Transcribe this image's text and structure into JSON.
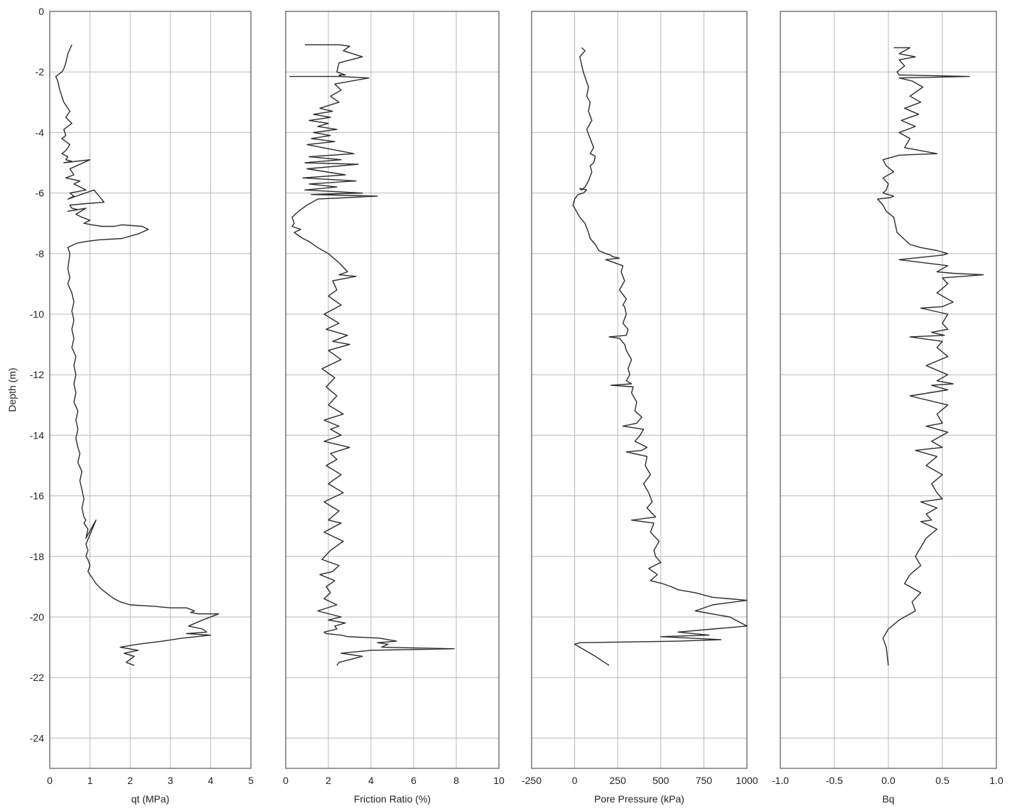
{
  "chart_data": [
    {
      "type": "line",
      "xlabel": "qt (MPa)",
      "ylabel": "Depth (m)",
      "xlim": [
        0,
        5
      ],
      "ylim": [
        -25,
        0
      ],
      "xticks": [
        0,
        1,
        2,
        3,
        4,
        5
      ],
      "yticks": [
        0,
        -2,
        -4,
        -6,
        -8,
        -10,
        -12,
        -14,
        -16,
        -18,
        -20,
        -22,
        -24
      ],
      "grid": true,
      "series": [
        {
          "x": [
            0.55,
            0.45,
            0.4,
            0.35,
            0.3,
            0.2,
            0.15,
            0.2,
            0.25,
            0.35,
            0.5,
            0.4,
            0.55,
            0.35,
            0.4,
            0.3,
            0.5,
            0.4,
            0.3,
            0.45,
            0.4,
            0.55,
            0.35,
            1.0,
            0.5,
            0.6,
            0.4,
            0.75,
            0.6,
            0.9,
            0.5,
            0.6,
            0.45,
            1.1,
            1.35,
            0.9,
            0.5,
            0.55,
            0.7,
            0.45,
            0.9,
            0.65,
            0.8,
            1.0,
            0.85,
            1.05,
            1.3,
            1.6,
            1.8,
            2.3,
            2.45,
            2.2,
            1.8,
            1.2,
            0.9,
            0.7,
            0.6,
            0.45,
            0.5,
            0.45,
            0.5,
            0.45,
            0.55,
            0.6,
            0.55,
            0.6,
            0.55,
            0.6,
            0.55,
            0.65,
            0.6,
            0.65,
            0.6,
            0.65,
            0.6,
            0.7,
            0.65,
            0.7,
            0.65,
            0.7,
            0.75,
            0.7,
            0.8,
            0.75,
            0.8,
            0.85,
            0.8,
            0.85,
            0.9,
            0.85,
            0.95,
            0.9,
            1.15,
            0.9,
            0.95,
            0.9,
            0.95,
            1.0,
            0.95,
            1.05,
            1.15,
            1.3,
            1.5,
            1.6,
            1.75,
            2.0,
            2.6,
            3.0,
            3.4,
            3.5,
            3.6,
            3.5,
            3.7,
            4.2,
            3.8,
            3.45,
            3.8,
            3.9,
            3.4,
            4.0,
            3.3,
            2.8,
            2.2,
            1.75,
            2.2,
            1.85,
            2.1,
            1.9,
            2.1
          ],
          "y": [
            -1.1,
            -1.4,
            -1.7,
            -1.9,
            -2.0,
            -2.1,
            -2.15,
            -2.3,
            -2.6,
            -3.0,
            -3.3,
            -3.5,
            -3.7,
            -3.9,
            -4.1,
            -4.2,
            -4.4,
            -4.6,
            -4.7,
            -4.8,
            -4.9,
            -4.95,
            -5.0,
            -4.9,
            -5.2,
            -5.4,
            -5.5,
            -5.6,
            -5.7,
            -5.9,
            -6.0,
            -6.1,
            -6.2,
            -5.9,
            -6.3,
            -6.35,
            -6.4,
            -6.5,
            -6.55,
            -6.6,
            -6.5,
            -6.7,
            -6.8,
            -6.9,
            -7.0,
            -7.05,
            -7.1,
            -7.1,
            -7.05,
            -7.1,
            -7.2,
            -7.35,
            -7.5,
            -7.55,
            -7.6,
            -7.65,
            -7.7,
            -7.8,
            -8.0,
            -8.5,
            -8.8,
            -9.0,
            -9.3,
            -9.6,
            -9.9,
            -10.2,
            -10.5,
            -10.8,
            -11.1,
            -11.4,
            -11.7,
            -12.0,
            -12.3,
            -12.6,
            -12.9,
            -13.2,
            -13.5,
            -13.8,
            -14.1,
            -14.4,
            -14.6,
            -14.9,
            -15.2,
            -15.5,
            -15.8,
            -16.1,
            -16.4,
            -16.7,
            -16.8,
            -16.9,
            -17.1,
            -17.4,
            -16.8,
            -17.6,
            -17.8,
            -18.0,
            -18.1,
            -18.3,
            -18.5,
            -18.7,
            -18.9,
            -19.1,
            -19.3,
            -19.4,
            -19.5,
            -19.6,
            -19.65,
            -19.7,
            -19.7,
            -19.75,
            -19.8,
            -19.85,
            -19.9,
            -19.9,
            -20.1,
            -20.3,
            -20.4,
            -20.5,
            -20.55,
            -20.6,
            -20.7,
            -20.8,
            -20.9,
            -21.0,
            -21.1,
            -21.2,
            -21.3,
            -21.5,
            -21.6
          ]
        }
      ]
    },
    {
      "type": "line",
      "xlabel": "Friction Ratio (%)",
      "xlim": [
        0,
        10
      ],
      "ylim": [
        -25,
        0
      ],
      "xticks": [
        0,
        2,
        4,
        6,
        8,
        10
      ],
      "grid": true,
      "series": [
        {
          "x": [
            0.9,
            2.5,
            3.0,
            2.7,
            3.6,
            2.5,
            2.4,
            2.8,
            2.5,
            2.6,
            0.2,
            2.5,
            3.9,
            2.3,
            2.6,
            2.1,
            2.5,
            1.6,
            2.2,
            1.3,
            2.1,
            1.1,
            2.0,
            1.5,
            2.4,
            1.3,
            2.1,
            1.2,
            2.3,
            1.0,
            3.2,
            1.1,
            2.6,
            0.9,
            3.4,
            1.0,
            2.8,
            0.8,
            3.3,
            1.1,
            2.4,
            0.9,
            3.6,
            1.2,
            4.3,
            1.5,
            1.0,
            0.6,
            0.3,
            0.4,
            0.3,
            0.7,
            0.4,
            0.8,
            1.1,
            1.5,
            2.0,
            2.5,
            2.9,
            2.5,
            3.3,
            2.2,
            2.4,
            2.0,
            2.6,
            1.8,
            2.5,
            1.9,
            2.9,
            2.2,
            3.0,
            2.0,
            2.6,
            1.7,
            2.3,
            1.9,
            2.4,
            2.0,
            2.7,
            1.8,
            2.5,
            2.1,
            2.6,
            1.8,
            3.0,
            2.1,
            2.4,
            1.9,
            2.6,
            2.0,
            2.7,
            1.8,
            2.5,
            2.0,
            2.6,
            1.8,
            2.7,
            2.1,
            1.7,
            2.5,
            2.2,
            1.6,
            2.3,
            1.9,
            2.1,
            1.8,
            2.4,
            1.5,
            2.6,
            2.0,
            2.8,
            2.3,
            2.4,
            1.8,
            1.9,
            2.6,
            2.9,
            4.4,
            5.2,
            4.3,
            4.8,
            4.5,
            7.9,
            4.0,
            2.6,
            3.6,
            2.5,
            2.4
          ],
          "y": [
            -1.1,
            -1.1,
            -1.15,
            -1.3,
            -1.5,
            -1.7,
            -2.0,
            -2.1,
            -2.1,
            -2.15,
            -2.15,
            -2.15,
            -2.2,
            -2.4,
            -2.6,
            -2.8,
            -3.0,
            -3.2,
            -3.3,
            -3.4,
            -3.5,
            -3.6,
            -3.7,
            -3.8,
            -3.9,
            -4.0,
            -4.1,
            -4.2,
            -4.3,
            -4.4,
            -4.7,
            -4.8,
            -4.9,
            -5.0,
            -5.05,
            -5.2,
            -5.4,
            -5.5,
            -5.6,
            -5.7,
            -5.8,
            -5.9,
            -6.0,
            -6.05,
            -6.1,
            -6.2,
            -6.4,
            -6.6,
            -6.8,
            -7.0,
            -7.1,
            -7.2,
            -7.3,
            -7.5,
            -7.6,
            -7.8,
            -8.0,
            -8.3,
            -8.6,
            -8.7,
            -8.75,
            -8.9,
            -9.2,
            -9.4,
            -9.7,
            -10.0,
            -10.3,
            -10.5,
            -10.7,
            -10.9,
            -11.0,
            -11.2,
            -11.5,
            -11.8,
            -12.1,
            -12.4,
            -12.7,
            -13.0,
            -13.3,
            -13.5,
            -13.7,
            -13.8,
            -14.0,
            -14.2,
            -14.4,
            -14.6,
            -14.8,
            -15.0,
            -15.3,
            -15.6,
            -15.9,
            -16.2,
            -16.5,
            -16.8,
            -16.9,
            -17.2,
            -17.5,
            -17.8,
            -18.1,
            -18.3,
            -18.5,
            -18.6,
            -18.8,
            -19.0,
            -19.2,
            -19.4,
            -19.6,
            -19.8,
            -20.0,
            -20.1,
            -20.2,
            -20.3,
            -20.4,
            -20.5,
            -20.55,
            -20.6,
            -20.65,
            -20.7,
            -20.8,
            -20.85,
            -20.9,
            -21.0,
            -21.05,
            -21.1,
            -21.2,
            -21.3,
            -21.5,
            -21.6
          ]
        }
      ]
    },
    {
      "type": "line",
      "xlabel": "Pore Pressure (kPa)",
      "xlim": [
        -250,
        1000
      ],
      "ylim": [
        -25,
        0
      ],
      "xticks": [
        -250,
        0,
        250,
        500,
        750,
        1000
      ],
      "grid": true,
      "series": [
        {
          "x": [
            40,
            60,
            30,
            50,
            80,
            70,
            90,
            80,
            100,
            70,
            90,
            110,
            90,
            110,
            120,
            110,
            90,
            100,
            80,
            60,
            40,
            30,
            70,
            50,
            20,
            0,
            -10,
            10,
            30,
            60,
            80,
            90,
            120,
            140,
            180,
            210,
            220,
            260,
            180,
            280,
            270,
            290,
            260,
            300,
            280,
            290,
            300,
            280,
            310,
            300,
            200,
            260,
            290,
            300,
            330,
            310,
            320,
            300,
            330,
            210,
            340,
            330,
            360,
            350,
            390,
            360,
            280,
            400,
            380,
            350,
            420,
            390,
            300,
            420,
            410,
            440,
            400,
            430,
            450,
            420,
            470,
            330,
            460,
            440,
            490,
            460,
            470,
            500,
            430,
            480,
            440,
            510,
            560,
            600,
            700,
            800,
            1000,
            800,
            700,
            900,
            1000,
            800,
            600,
            780,
            500,
            850,
            600,
            30,
            0,
            60,
            120,
            200
          ],
          "y": [
            -1.2,
            -1.3,
            -1.5,
            -2.0,
            -2.5,
            -2.8,
            -3.0,
            -3.3,
            -3.6,
            -3.9,
            -4.2,
            -4.5,
            -4.7,
            -4.75,
            -4.8,
            -5.0,
            -5.1,
            -5.3,
            -5.6,
            -5.8,
            -5.9,
            -5.85,
            -5.9,
            -6.0,
            -6.05,
            -6.2,
            -6.4,
            -6.6,
            -6.8,
            -7.0,
            -7.3,
            -7.5,
            -7.7,
            -7.9,
            -8.0,
            -8.05,
            -8.1,
            -8.15,
            -8.2,
            -8.4,
            -8.6,
            -8.9,
            -9.2,
            -9.5,
            -9.7,
            -9.75,
            -10.0,
            -10.3,
            -10.5,
            -10.7,
            -10.75,
            -10.8,
            -11.0,
            -11.2,
            -11.5,
            -11.8,
            -12.0,
            -12.2,
            -12.3,
            -12.35,
            -12.4,
            -12.6,
            -12.9,
            -13.2,
            -13.4,
            -13.6,
            -13.7,
            -13.8,
            -14.0,
            -14.2,
            -14.4,
            -14.5,
            -14.55,
            -14.7,
            -15.0,
            -15.3,
            -15.6,
            -15.9,
            -16.2,
            -16.4,
            -16.7,
            -16.8,
            -16.9,
            -17.2,
            -17.5,
            -17.8,
            -18.0,
            -18.2,
            -18.4,
            -18.6,
            -18.8,
            -18.9,
            -19.0,
            -19.1,
            -19.2,
            -19.35,
            -19.45,
            -19.6,
            -19.8,
            -20.0,
            -20.3,
            -20.4,
            -20.5,
            -20.6,
            -20.65,
            -20.75,
            -20.8,
            -20.85,
            -20.9,
            -21.1,
            -21.3,
            -21.6
          ]
        }
      ]
    },
    {
      "type": "line",
      "xlabel": "Bq",
      "xlim": [
        -1.0,
        1.0
      ],
      "ylim": [
        -25,
        0
      ],
      "xticks": [
        -1.0,
        -0.5,
        0.0,
        0.5,
        1.0
      ],
      "xticklabels": [
        "-1.0",
        "-0.5",
        "0.0",
        "0.5",
        "1.0"
      ],
      "grid": true,
      "series": [
        {
          "x": [
            0.05,
            0.2,
            0.1,
            0.25,
            0.1,
            0.15,
            0.08,
            0.1,
            0.75,
            0.1,
            0.22,
            0.32,
            0.2,
            0.3,
            0.15,
            0.28,
            0.12,
            0.25,
            0.1,
            0.2,
            0.15,
            0.45,
            0.1,
            -0.05,
            -0.02,
            0.05,
            -0.05,
            0.0,
            -0.02,
            -0.05,
            0.05,
            0.02,
            -0.1,
            -0.05,
            -0.02,
            0.05,
            0.08,
            0.2,
            0.3,
            0.45,
            0.55,
            0.5,
            0.1,
            0.55,
            0.45,
            0.6,
            0.88,
            0.5,
            0.55,
            0.45,
            0.6,
            0.5,
            0.3,
            0.55,
            0.5,
            0.55,
            0.4,
            0.52,
            0.2,
            0.5,
            0.45,
            0.55,
            0.35,
            0.55,
            0.45,
            0.6,
            0.4,
            0.55,
            0.2,
            0.55,
            0.45,
            0.5,
            0.35,
            0.55,
            0.4,
            0.5,
            0.25,
            0.45,
            0.35,
            0.5,
            0.4,
            0.45,
            0.5,
            0.3,
            0.45,
            0.35,
            0.4,
            0.3,
            0.45,
            0.35,
            0.3,
            0.25,
            0.3,
            0.2,
            0.15,
            0.3,
            0.22,
            0.25,
            0.1,
            0.0,
            -0.05,
            -0.02,
            0.0
          ],
          "y": [
            -1.2,
            -1.2,
            -1.4,
            -1.5,
            -1.6,
            -1.8,
            -2.0,
            -2.1,
            -2.15,
            -2.2,
            -2.3,
            -2.5,
            -2.8,
            -3.0,
            -3.2,
            -3.4,
            -3.6,
            -3.8,
            -4.0,
            -4.2,
            -4.5,
            -4.7,
            -4.75,
            -4.9,
            -5.1,
            -5.3,
            -5.5,
            -5.7,
            -5.9,
            -6.0,
            -6.1,
            -6.15,
            -6.2,
            -6.4,
            -6.6,
            -6.8,
            -7.3,
            -7.7,
            -7.8,
            -7.9,
            -8.0,
            -8.05,
            -8.2,
            -8.4,
            -8.6,
            -8.65,
            -8.7,
            -8.8,
            -9.0,
            -9.3,
            -9.6,
            -9.75,
            -9.8,
            -10.0,
            -10.3,
            -10.5,
            -10.6,
            -10.7,
            -10.75,
            -10.9,
            -11.1,
            -11.4,
            -11.7,
            -12.0,
            -12.2,
            -12.3,
            -12.35,
            -12.5,
            -12.7,
            -13.0,
            -13.3,
            -13.6,
            -13.7,
            -13.9,
            -14.2,
            -14.4,
            -14.5,
            -14.7,
            -15.0,
            -15.3,
            -15.6,
            -15.9,
            -16.1,
            -16.2,
            -16.4,
            -16.6,
            -16.8,
            -16.85,
            -17.1,
            -17.4,
            -17.7,
            -18.0,
            -18.3,
            -18.6,
            -18.9,
            -19.2,
            -19.5,
            -19.8,
            -20.1,
            -20.4,
            -20.7,
            -21.0,
            -21.6
          ]
        }
      ]
    }
  ]
}
